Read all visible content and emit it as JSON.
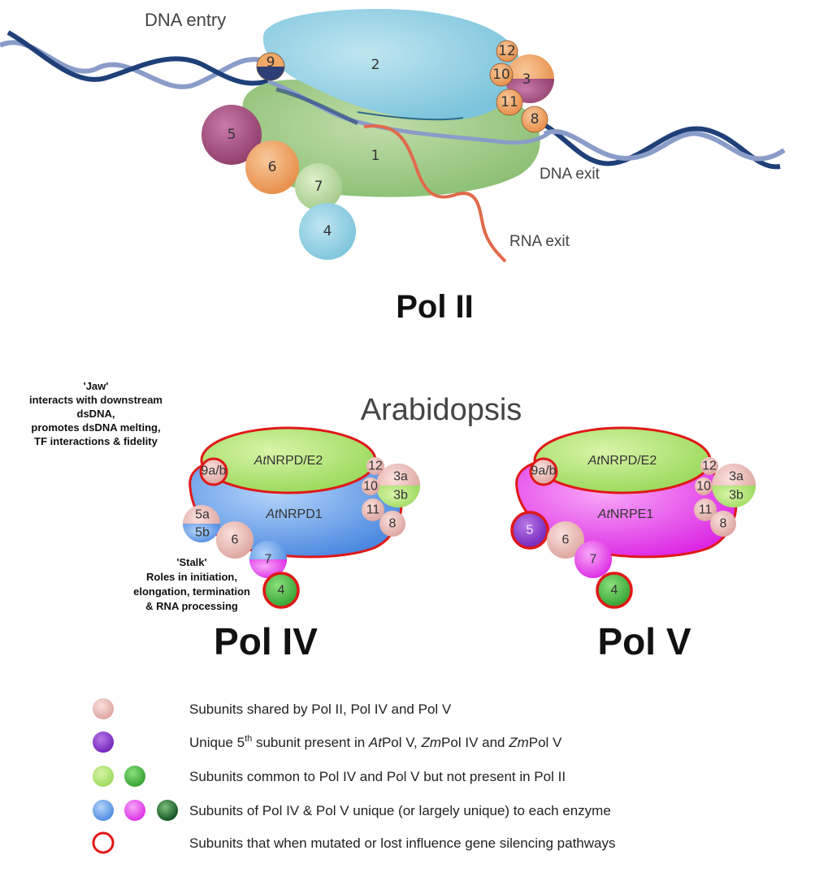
{
  "pol2": {
    "title": "Pol II",
    "dna_entry": "DNA entry",
    "dna_exit": "DNA exit",
    "rna_exit": "RNA exit",
    "subunits": [
      "1",
      "2",
      "3",
      "4",
      "5",
      "6",
      "7",
      "8",
      "9",
      "10",
      "11",
      "12"
    ]
  },
  "arabidopsis": {
    "title": "Arabidopsis",
    "jaw_note": [
      "'Jaw'",
      "interacts with downstream",
      "dsDNA,",
      "promotes dsDNA melting,",
      "TF interactions & fidelity"
    ],
    "stalk_note": [
      "'Stalk'",
      "Roles in initiation,",
      "elongation, termination",
      "& RNA processing"
    ],
    "pol4": {
      "title": "Pol IV",
      "large1_prefix": "At",
      "large1_suffix": "NRPD1",
      "large2_prefix": "At",
      "large2_suffix": "NRPD/E2",
      "subunits": {
        "s9": "9a/b",
        "s12": "12",
        "s10": "10",
        "s11": "11",
        "s8": "8",
        "s3a": "3a",
        "s3b": "3b",
        "s5a": "5a",
        "s5b": "5b",
        "s6": "6",
        "s7": "7",
        "s4": "4"
      }
    },
    "pol5": {
      "title": "Pol V",
      "large1_prefix": "At",
      "large1_suffix": "NRPE1",
      "large2_prefix": "At",
      "large2_suffix": "NRPD/E2",
      "subunits": {
        "s9": "9a/b",
        "s12": "12",
        "s10": "10",
        "s11": "11",
        "s8": "8",
        "s3a": "3a",
        "s3b": "3b",
        "s5": "5",
        "s6": "6",
        "s7": "7",
        "s4": "4"
      }
    }
  },
  "legend": {
    "shared": "Subunits shared by Pol II, Pol IV and Pol V",
    "unique5_a": "Unique 5",
    "unique5_sup": "th",
    "unique5_b": " subunit present in ",
    "unique5_at": "At",
    "unique5_c": "Pol V, ",
    "unique5_zm1": "Zm",
    "unique5_d": "Pol IV and ",
    "unique5_zm2": "Zm",
    "unique5_e": "Pol V",
    "common": "Subunits common to Pol IV and Pol V but not present in Pol II",
    "unique_each": "Subunits of Pol IV & Pol V unique (or largely unique) to each enzyme",
    "mutated": "Subunits that when mutated or lost influence gene silencing pathways"
  },
  "colors": {
    "pol2_green": "#9fc98a",
    "pol2_blue": "#8fd0e2",
    "pol2_orange": "#f0a868",
    "pol2_purple": "#a8548a",
    "dna_dark": "#1f3f78",
    "dna_light": "#8a9cc8",
    "rna": "#e06a4a",
    "pink": "#e8b4b0",
    "lime": "#a8e070",
    "green": "#3cb43c",
    "blue": "#5c9ae8",
    "magenta": "#e040e8",
    "violet": "#8a3ccc",
    "red": "#e01818"
  }
}
